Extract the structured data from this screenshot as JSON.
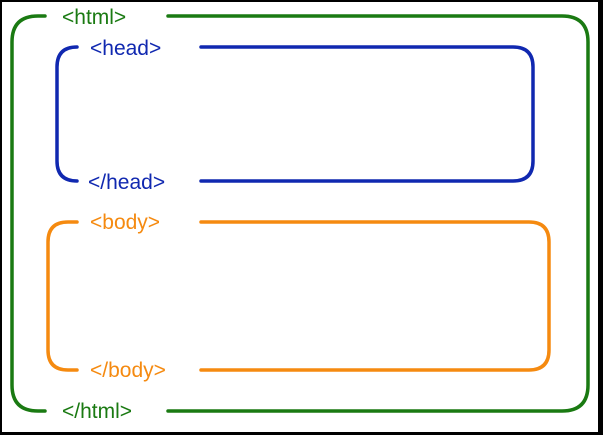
{
  "diagram": {
    "background": "#ffffff",
    "outer_frame": "#000000",
    "html_block": {
      "color": "#1a7a12",
      "open_tag": "<html>",
      "close_tag": "</html>"
    },
    "head_block": {
      "color": "#1028b0",
      "open_tag": "<head>",
      "close_tag": "</head>"
    },
    "body_block": {
      "color": "#f58a10",
      "open_tag": "<body>",
      "close_tag": "</body>"
    }
  }
}
